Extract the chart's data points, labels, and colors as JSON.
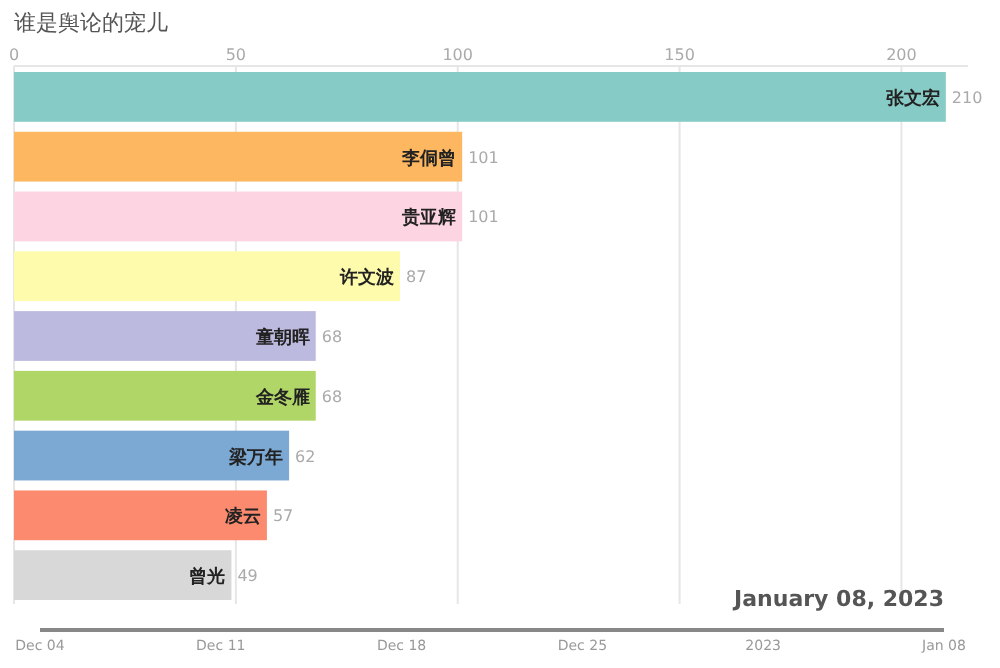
{
  "chart_data": {
    "type": "bar",
    "orientation": "horizontal",
    "title": "谁是舆论的宠儿",
    "categories": [
      "张文宏",
      "李侗曾",
      "贵亚辉",
      "许文波",
      "童朝晖",
      "金冬雁",
      "梁万年",
      "凌云",
      "曾光"
    ],
    "values": [
      210,
      101,
      101,
      87,
      68,
      68,
      62,
      57,
      49
    ],
    "colors": [
      "#86cbc6",
      "#fdb760",
      "#fdd4e1",
      "#fefbac",
      "#bcbade",
      "#b1d668",
      "#7ca9d4",
      "#fb8a6f",
      "#d8d8d8"
    ],
    "xlim": [
      0,
      215
    ],
    "xticks": [
      0,
      50,
      100,
      150,
      200
    ],
    "grid": "x",
    "data_labels": true,
    "annotations": [
      "January 08, 2023",
      "Dec 04",
      "Dec 11",
      "Dec 18",
      "Dec 25",
      "2023",
      "Jan 08"
    ]
  }
}
